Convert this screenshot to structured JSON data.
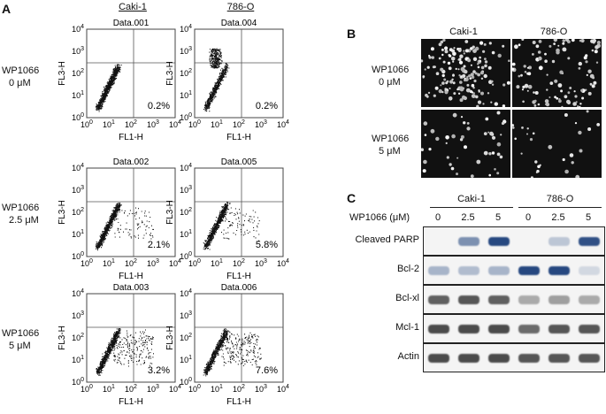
{
  "panels": {
    "a": "A",
    "b": "B",
    "c": "C"
  },
  "flow": {
    "columns": [
      "Caki-1",
      "786-O"
    ],
    "rows": [
      {
        "label_line1": "WP1066",
        "label_line2": "0 μM"
      },
      {
        "label_line1": "WP1066",
        "label_line2": "2.5 μM"
      },
      {
        "label_line1": "WP1066",
        "label_line2": "5 μM"
      }
    ],
    "plots": [
      {
        "title": "Data.001",
        "percent": "0.2%",
        "type": "caki0"
      },
      {
        "title": "Data.004",
        "percent": "0.2%",
        "type": "o0"
      },
      {
        "title": "Data.002",
        "percent": "2.1%",
        "type": "caki2"
      },
      {
        "title": "Data.005",
        "percent": "5.8%",
        "type": "o2"
      },
      {
        "title": "Data.003",
        "percent": "3.2%",
        "type": "caki5"
      },
      {
        "title": "Data.006",
        "percent": "7.6%",
        "type": "o5"
      }
    ],
    "xlabel": "FL1-H",
    "ylabel": "FL3-H",
    "ticks": [
      "10",
      "10",
      "10",
      "10",
      "10"
    ],
    "exponents": [
      "0",
      "1",
      "2",
      "3",
      "4"
    ]
  },
  "micro": {
    "columns": [
      "Caki-1",
      "786-O"
    ],
    "rows": [
      {
        "label_line1": "WP1066",
        "label_line2": "0 μM"
      },
      {
        "label_line1": "WP1066",
        "label_line2": "5 μM"
      }
    ]
  },
  "blot": {
    "groups": [
      "Caki-1",
      "786-O"
    ],
    "dose_label": "WP1066 (μM)",
    "lanes": [
      "0",
      "2.5",
      "5",
      "0",
      "2.5",
      "5"
    ],
    "proteins": [
      {
        "name": "Cleaved PARP",
        "intensities": [
          0,
          0.55,
          0.95,
          0,
          0.25,
          0.9
        ],
        "tint": "#1b3f7a"
      },
      {
        "name": "Bcl-2",
        "intensities": [
          0.35,
          0.3,
          0.35,
          0.95,
          0.95,
          0.15
        ],
        "tint": "#1b3f7a"
      },
      {
        "name": "Bcl-xl",
        "intensities": [
          0.7,
          0.75,
          0.7,
          0.35,
          0.4,
          0.35
        ],
        "tint": "#222222"
      },
      {
        "name": "Mcl-1",
        "intensities": [
          0.8,
          0.8,
          0.8,
          0.65,
          0.75,
          0.75
        ],
        "tint": "#222222"
      },
      {
        "name": "Actin",
        "intensities": [
          0.8,
          0.8,
          0.8,
          0.75,
          0.75,
          0.75
        ],
        "tint": "#222222"
      }
    ]
  }
}
